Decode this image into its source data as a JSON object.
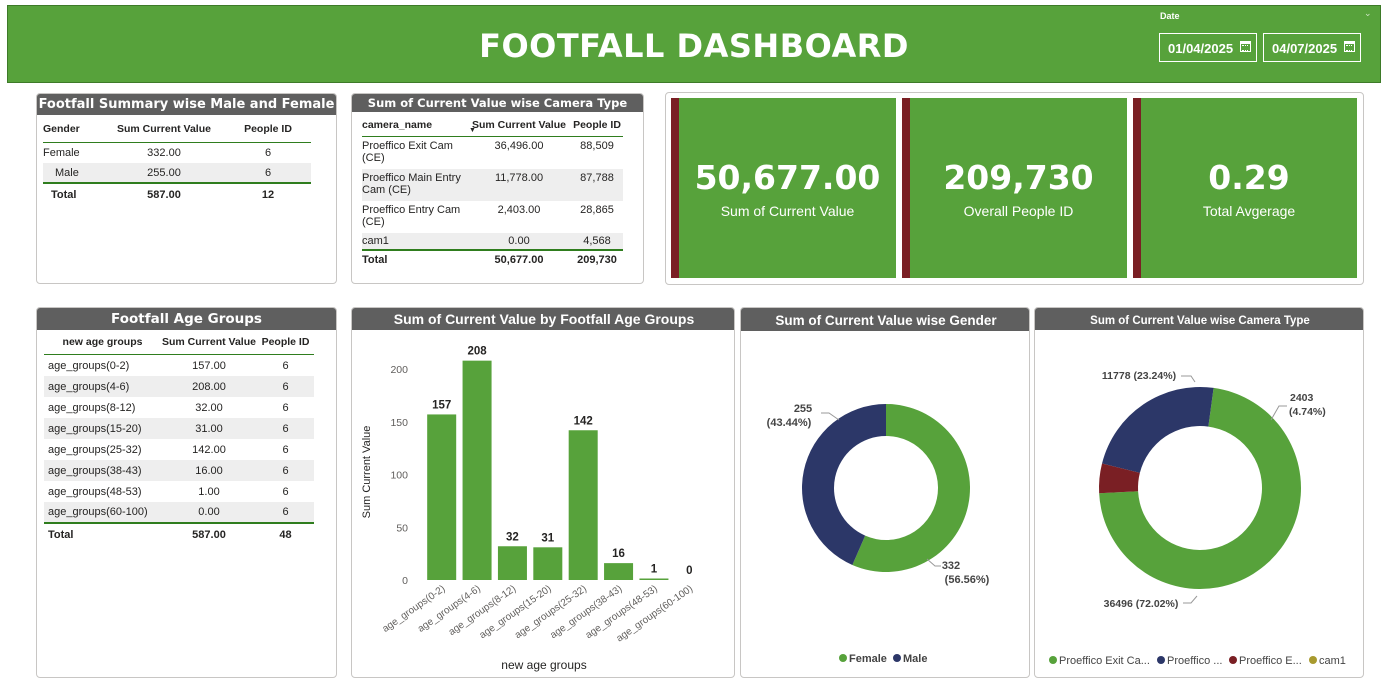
{
  "header": {
    "title": "FOOTFALL DASHBOARD",
    "date_label": "Date",
    "date_from": "01/04/2025",
    "date_to": "04/07/2025"
  },
  "gender_table": {
    "title": "Footfall Summary wise Male and Female",
    "columns": [
      "Gender",
      "Sum Current Value",
      "People ID"
    ],
    "rows": [
      [
        "Female",
        "332.00",
        "6"
      ],
      [
        "Male",
        "255.00",
        "6"
      ]
    ],
    "total": [
      "Total",
      "587.00",
      "12"
    ]
  },
  "camera_table": {
    "title": "Sum of Current Value wise Camera Type",
    "columns": [
      "camera_name",
      "Sum Current Value",
      "People ID"
    ],
    "rows": [
      [
        "Proeffico Exit Cam (CE)",
        "36,496.00",
        "88,509"
      ],
      [
        "Proeffico Main Entry Cam (CE)",
        "11,778.00",
        "87,788"
      ],
      [
        "Proeffico Entry Cam (CE)",
        "2,403.00",
        "28,865"
      ],
      [
        "cam1",
        "0.00",
        "4,568"
      ]
    ],
    "total": [
      "Total",
      "50,677.00",
      "209,730"
    ]
  },
  "kpis": [
    {
      "value": "50,677.00",
      "label": "Sum of Current Value"
    },
    {
      "value": "209,730",
      "label": "Overall People ID"
    },
    {
      "value": "0.29",
      "label": "Total Avgerage"
    }
  ],
  "age_table": {
    "title": "Footfall Age Groups",
    "columns": [
      "new age groups",
      "Sum Current Value",
      "People ID"
    ],
    "rows": [
      [
        "age_groups(0-2)",
        "157.00",
        "6"
      ],
      [
        "age_groups(4-6)",
        "208.00",
        "6"
      ],
      [
        "age_groups(8-12)",
        "32.00",
        "6"
      ],
      [
        "age_groups(15-20)",
        "31.00",
        "6"
      ],
      [
        "age_groups(25-32)",
        "142.00",
        "6"
      ],
      [
        "age_groups(38-43)",
        "16.00",
        "6"
      ],
      [
        "age_groups(48-53)",
        "1.00",
        "6"
      ],
      [
        "age_groups(60-100)",
        "0.00",
        "6"
      ]
    ],
    "total": [
      "Total",
      "587.00",
      "48"
    ]
  },
  "colors": {
    "green": "#57a23b",
    "navy": "#2c3768",
    "maroon": "#7a1f24",
    "olive": "#a89a2e",
    "title_bar": "#5f5f5f"
  },
  "chart_data": [
    {
      "type": "bar",
      "title": "Sum of Current Value by Footfall Age Groups",
      "xlabel": "new age groups",
      "ylabel": "Sum Current Value",
      "categories": [
        "age_groups(0-2)",
        "age_groups(4-6)",
        "age_groups(8-12)",
        "age_groups(15-20)",
        "age_groups(25-32)",
        "age_groups(38-43)",
        "age_groups(48-53)",
        "age_groups(60-100)"
      ],
      "values": [
        157,
        208,
        32,
        31,
        142,
        16,
        1,
        0
      ],
      "yticks": [
        0,
        50,
        100,
        150,
        200
      ],
      "ylim": [
        0,
        220
      ],
      "color": "#57a23b"
    },
    {
      "type": "pie",
      "donut": true,
      "title": "Sum of Current Value wise Gender",
      "slices": [
        {
          "label": "Female",
          "value": 332,
          "percent": "56.56%",
          "color": "#57a23b"
        },
        {
          "label": "Male",
          "value": 255,
          "percent": "43.44%",
          "color": "#2c3768"
        }
      ],
      "data_labels": [
        "332",
        "(56.56%)",
        "255",
        "(43.44%)"
      ],
      "legend": [
        "Female",
        "Male"
      ],
      "legend_position": "bottom"
    },
    {
      "type": "pie",
      "donut": true,
      "title": "Sum of Current Value wise Camera Type",
      "slices": [
        {
          "label": "Proeffico Exit Cam (CE)",
          "value": 36496,
          "percent": "72.02%",
          "color": "#57a23b"
        },
        {
          "label": "Proeffico Main Entry Cam (CE)",
          "value": 11778,
          "percent": "23.24%",
          "color": "#2c3768"
        },
        {
          "label": "Proeffico Entry Cam (CE)",
          "value": 2403,
          "percent": "4.74%",
          "color": "#7a1f24"
        },
        {
          "label": "cam1",
          "value": 0,
          "percent": "0.00%",
          "color": "#a89a2e"
        }
      ],
      "data_labels": [
        "11778 (23.24%)",
        "2403",
        "(4.74%)",
        "36496 (72.02%)"
      ],
      "legend": [
        "Proeffico Exit Ca...",
        "Proeffico ...",
        "Proeffico E...",
        "cam1"
      ],
      "legend_position": "bottom"
    }
  ]
}
